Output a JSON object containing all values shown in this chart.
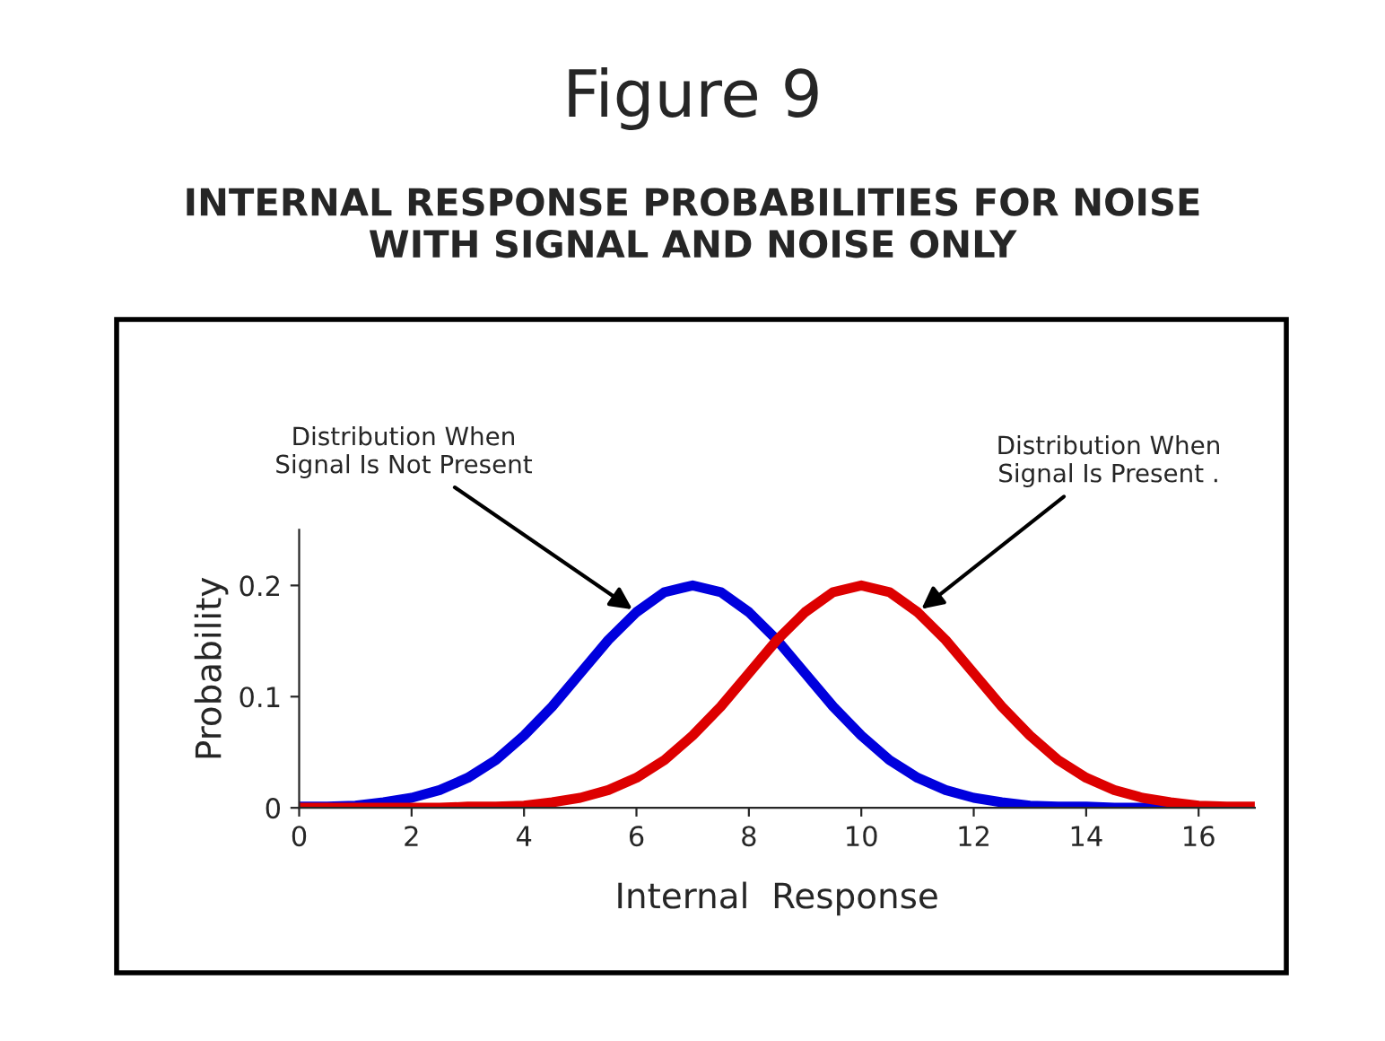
{
  "chart_data": {
    "type": "line",
    "title": "Figure 9",
    "subtitle": "INTERNAL RESPONSE PROBABILITIES FOR NOISE\nWITH SIGNAL AND NOISE ONLY",
    "xlabel": "Internal  Response",
    "ylabel": "Probability",
    "xlim": [
      0,
      17
    ],
    "ylim": [
      0,
      0.25
    ],
    "xticks": [
      0,
      2,
      4,
      6,
      8,
      10,
      12,
      14,
      16
    ],
    "yticks": [
      0,
      0.1,
      0.2
    ],
    "grid": false,
    "legend": false,
    "marker": "none",
    "line_style": "solid",
    "series": [
      {
        "color": "#0000dd",
        "x": [
          0,
          0.5,
          1,
          1.5,
          2,
          2.5,
          3,
          3.5,
          4,
          4.5,
          5,
          5.5,
          6,
          6.5,
          7,
          7.5,
          8,
          8.5,
          9,
          9.5,
          10,
          10.5,
          11,
          11.5,
          12,
          12.5,
          13,
          13.5,
          14,
          14.5,
          15,
          15.5,
          16
        ],
        "values": [
          0.001,
          0.001,
          0.002,
          0.005,
          0.009,
          0.016,
          0.027,
          0.043,
          0.065,
          0.091,
          0.121,
          0.151,
          0.176,
          0.194,
          0.2,
          0.194,
          0.176,
          0.151,
          0.121,
          0.091,
          0.065,
          0.043,
          0.027,
          0.016,
          0.009,
          0.005,
          0.002,
          0.001,
          0.001,
          0,
          0,
          0,
          0
        ]
      },
      {
        "color": "#dd0000",
        "x": [
          0,
          0.5,
          1,
          1.5,
          2,
          2.5,
          3,
          3.5,
          4,
          4.5,
          5,
          5.5,
          6,
          6.5,
          7,
          7.5,
          8,
          8.5,
          9,
          9.5,
          10,
          10.5,
          11,
          11.5,
          12,
          12.5,
          13,
          13.5,
          14,
          14.5,
          15,
          15.5,
          16,
          16.5,
          17
        ],
        "values": [
          0,
          0,
          0,
          0,
          0,
          0,
          0.001,
          0.001,
          0.002,
          0.005,
          0.009,
          0.016,
          0.027,
          0.043,
          0.065,
          0.091,
          0.121,
          0.151,
          0.176,
          0.194,
          0.2,
          0.194,
          0.176,
          0.151,
          0.121,
          0.091,
          0.065,
          0.043,
          0.027,
          0.016,
          0.009,
          0.005,
          0.002,
          0.001,
          0.001
        ]
      }
    ],
    "annotations": [
      {
        "text": "Distribution When\nSignal Is Not Present",
        "x": 6,
        "y": 0.176
      },
      {
        "text": "Distribution When\nSignal Is Present .",
        "x": 11,
        "y": 0.176
      }
    ]
  }
}
